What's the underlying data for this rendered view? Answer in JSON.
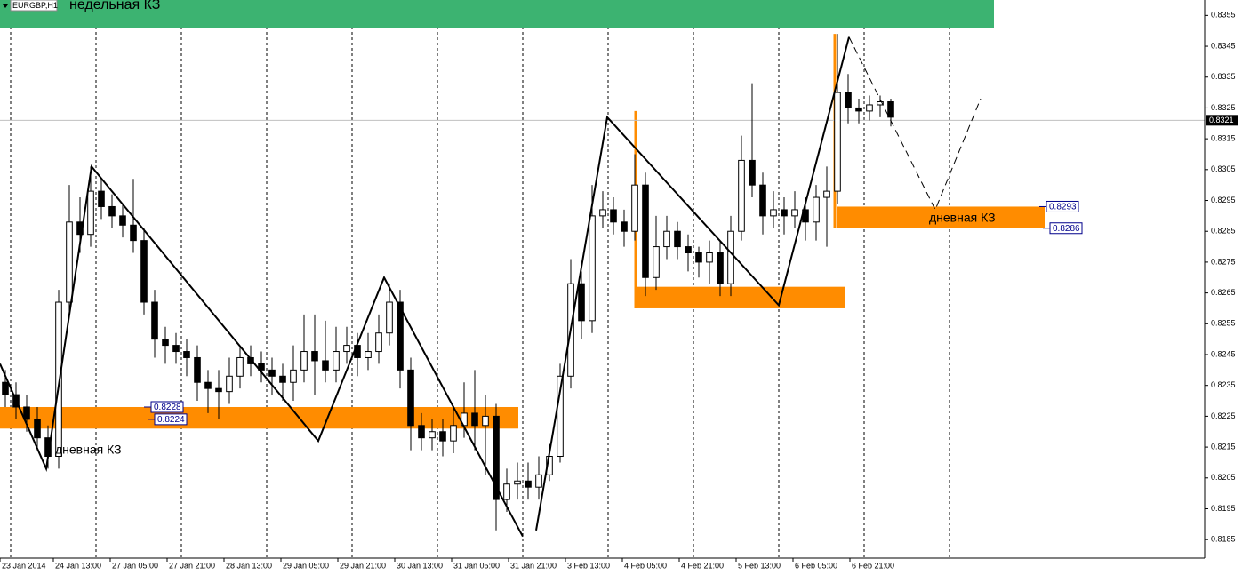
{
  "chart_data": {
    "type": "candlestick",
    "title": "EURGBP,H1",
    "xlim": [
      0,
      338.75
    ],
    "ylim": [
      0.8179,
      0.836
    ],
    "xticks": [
      {
        "value": 0,
        "label": "23 Jan 2014"
      },
      {
        "value": 15,
        "label": "24 Jan 13:00"
      },
      {
        "value": 31,
        "label": "27 Jan 05:00"
      },
      {
        "value": 47,
        "label": "27 Jan 21:00"
      },
      {
        "value": 63,
        "label": "28 Jan 13:00"
      },
      {
        "value": 79,
        "label": "29 Jan 05:00"
      },
      {
        "value": 95,
        "label": "29 Jan 21:00"
      },
      {
        "value": 111,
        "label": "30 Jan 13:00"
      },
      {
        "value": 127,
        "label": "31 Jan 05:00"
      },
      {
        "value": 143,
        "label": "31 Jan 21:00"
      },
      {
        "value": 159,
        "label": "3 Feb 13:00"
      },
      {
        "value": 175,
        "label": "4 Feb 05:00"
      },
      {
        "value": 191,
        "label": "4 Feb 21:00"
      },
      {
        "value": 207,
        "label": "5 Feb 13:00"
      },
      {
        "value": 223,
        "label": "6 Feb 05:00"
      },
      {
        "value": 239,
        "label": "6 Feb 21:00"
      }
    ],
    "yticks": [
      0.8185,
      0.8195,
      0.8205,
      0.8215,
      0.8225,
      0.8235,
      0.8245,
      0.8255,
      0.8265,
      0.8275,
      0.8285,
      0.8295,
      0.8305,
      0.8315,
      0.8325,
      0.8335,
      0.8345,
      0.8355
    ],
    "separators": [
      3,
      27,
      51,
      75,
      99,
      123,
      147,
      171,
      195,
      219,
      243,
      267
    ],
    "last_price": 0.8321,
    "x": [
      1.5,
      4.5,
      7.5,
      10.5,
      13.5,
      16.5,
      19.5,
      22.5,
      25.5,
      28.5,
      31.5,
      34.5,
      37.5,
      40.5,
      43.5,
      46.5,
      49.5,
      52.5,
      55.5,
      58.5,
      61.5,
      64.5,
      67.5,
      70.5,
      73.5,
      76.5,
      79.5,
      82.5,
      85.5,
      88.5,
      91.5,
      94.5,
      97.5,
      100.5,
      103.5,
      106.5,
      109.5,
      112.5,
      115.5,
      118.5,
      121.5,
      124.5,
      127.5,
      130.5,
      133.5,
      136.5,
      139.5,
      142.5,
      145.5,
      148.5,
      151.5,
      154.5,
      157.5,
      160.5,
      163.5,
      166.5,
      169.5,
      172.5,
      175.5,
      178.5,
      181.5,
      184.5,
      187.5,
      190.5,
      193.5,
      196.5,
      199.5,
      202.5,
      205.5,
      208.5,
      211.5,
      214.5,
      217.5,
      220.5,
      223.5,
      226.5,
      229.5,
      232.5,
      235.5,
      238.5,
      241.5,
      244.5,
      247.5,
      250.5
    ],
    "open": [
      0.8236,
      0.8232,
      0.8228,
      0.8224,
      0.8218,
      0.8212,
      0.8262,
      0.8288,
      0.8284,
      0.8298,
      0.8293,
      0.829,
      0.8287,
      0.8282,
      0.8262,
      0.825,
      0.8248,
      0.8246,
      0.8244,
      0.8236,
      0.8234,
      0.8233,
      0.8238,
      0.8244,
      0.8242,
      0.824,
      0.8238,
      0.8236,
      0.824,
      0.8246,
      0.8243,
      0.824,
      0.8246,
      0.8248,
      0.8244,
      0.8246,
      0.8252,
      0.8262,
      0.824,
      0.8222,
      0.8218,
      0.822,
      0.8217,
      0.8222,
      0.8226,
      0.8222,
      0.8225,
      0.8198,
      0.8203,
      0.8204,
      0.8202,
      0.8206,
      0.8212,
      0.8238,
      0.8268,
      0.8256,
      0.829,
      0.8292,
      0.8288,
      0.8285,
      0.83,
      0.827,
      0.828,
      0.8285,
      0.828,
      0.8278,
      0.8275,
      0.8278,
      0.8268,
      0.8285,
      0.8308,
      0.83,
      0.829,
      0.8292,
      0.829,
      0.8292,
      0.8288,
      0.8296,
      0.8298,
      0.833,
      0.8325,
      0.8324,
      0.8326,
      0.8327
    ],
    "high": [
      0.824,
      0.8236,
      0.8232,
      0.8228,
      0.8222,
      0.8266,
      0.83,
      0.8296,
      0.8306,
      0.8302,
      0.8297,
      0.8294,
      0.8302,
      0.8286,
      0.8266,
      0.8254,
      0.8252,
      0.825,
      0.8248,
      0.824,
      0.824,
      0.8244,
      0.8248,
      0.8248,
      0.8246,
      0.8244,
      0.8242,
      0.8248,
      0.8258,
      0.8258,
      0.8256,
      0.8254,
      0.8254,
      0.8252,
      0.8252,
      0.8258,
      0.8268,
      0.8266,
      0.8244,
      0.8226,
      0.8224,
      0.8224,
      0.8228,
      0.8236,
      0.824,
      0.8232,
      0.8229,
      0.8208,
      0.821,
      0.821,
      0.8212,
      0.8216,
      0.8242,
      0.8276,
      0.8272,
      0.83,
      0.8298,
      0.8296,
      0.8292,
      0.831,
      0.8304,
      0.829,
      0.829,
      0.8288,
      0.8284,
      0.828,
      0.8282,
      0.8282,
      0.829,
      0.8316,
      0.8333,
      0.8304,
      0.8298,
      0.8296,
      0.8298,
      0.8296,
      0.83,
      0.8306,
      0.8349,
      0.8336,
      0.8328,
      0.8329,
      0.8329,
      0.8328
    ],
    "low": [
      0.8228,
      0.8224,
      0.822,
      0.8214,
      0.8208,
      0.8208,
      0.8258,
      0.8278,
      0.828,
      0.8289,
      0.8286,
      0.8283,
      0.8278,
      0.8258,
      0.8244,
      0.8242,
      0.8242,
      0.8238,
      0.823,
      0.8226,
      0.8224,
      0.8229,
      0.8234,
      0.8238,
      0.8236,
      0.8232,
      0.823,
      0.823,
      0.8236,
      0.8232,
      0.8236,
      0.8236,
      0.8242,
      0.8238,
      0.824,
      0.8242,
      0.8248,
      0.8234,
      0.8214,
      0.8214,
      0.8214,
      0.8212,
      0.8213,
      0.8218,
      0.8214,
      0.8206,
      0.8188,
      0.8194,
      0.8198,
      0.8198,
      0.8198,
      0.8204,
      0.821,
      0.8234,
      0.825,
      0.8252,
      0.8286,
      0.8284,
      0.828,
      0.8282,
      0.8264,
      0.8266,
      0.8276,
      0.8276,
      0.8272,
      0.827,
      0.8268,
      0.8264,
      0.8264,
      0.8282,
      0.8296,
      0.8284,
      0.8286,
      0.8284,
      0.8286,
      0.8282,
      0.8282,
      0.828,
      0.8294,
      0.832,
      0.832,
      0.8321,
      0.8322,
      0.8319
    ],
    "close": [
      0.8232,
      0.8228,
      0.8224,
      0.8218,
      0.8212,
      0.8262,
      0.8288,
      0.8284,
      0.8298,
      0.8293,
      0.829,
      0.8287,
      0.8282,
      0.8262,
      0.825,
      0.8248,
      0.8246,
      0.8244,
      0.8236,
      0.8234,
      0.8233,
      0.8238,
      0.8244,
      0.8242,
      0.824,
      0.8238,
      0.8236,
      0.824,
      0.8246,
      0.8243,
      0.824,
      0.8246,
      0.8248,
      0.8244,
      0.8246,
      0.8252,
      0.8262,
      0.824,
      0.8222,
      0.8218,
      0.822,
      0.8217,
      0.8222,
      0.8226,
      0.8222,
      0.8225,
      0.8198,
      0.8203,
      0.8204,
      0.8202,
      0.8206,
      0.8212,
      0.8238,
      0.8268,
      0.8256,
      0.829,
      0.8292,
      0.8288,
      0.8285,
      0.83,
      0.827,
      0.828,
      0.8285,
      0.828,
      0.8278,
      0.8275,
      0.8278,
      0.8268,
      0.8285,
      0.8308,
      0.83,
      0.829,
      0.8292,
      0.829,
      0.8292,
      0.8288,
      0.8296,
      0.8298,
      0.833,
      0.8325,
      0.8324,
      0.8326,
      0.8327,
      0.8322
    ],
    "zones": [
      {
        "color": "#3cb371",
        "x": [
          0,
          279.5
        ],
        "top": 0.836,
        "bottom": 0.8351,
        "labels": []
      },
      {
        "color": "#ff8c00",
        "x": [
          0,
          145.75
        ],
        "top": 0.8228,
        "bottom": 0.8221,
        "labels": [
          0.8228,
          0.8224
        ]
      },
      {
        "color": "#ff8c00",
        "x": [
          179,
          237.75
        ],
        "top": 0.8267,
        "bottom": 0.826,
        "labels": []
      },
      {
        "color": "#ff8c00",
        "x": [
          235.25,
          293.75
        ],
        "top": 0.8293,
        "bottom": 0.8286,
        "labels": [
          0.8293,
          0.8286
        ]
      }
    ],
    "spikes": [
      {
        "color": "#ff8c00",
        "x": 178.75,
        "values": [
          0.8324,
          0.826
        ]
      },
      {
        "color": "#ff8c00",
        "x": 234.75,
        "values": [
          0.8349,
          0.8286
        ]
      }
    ],
    "lines": [
      {
        "style": "solid",
        "x": [
          0,
          13,
          25.75,
          89.5,
          108,
          147
        ],
        "values": [
          0.8242,
          0.8208,
          0.8306,
          0.8217,
          0.827,
          0.8186
        ]
      },
      {
        "style": "solid",
        "x": [
          150.75,
          170.75,
          219,
          238.75
        ],
        "values": [
          0.8188,
          0.8322,
          0.8261,
          0.8348
        ]
      },
      {
        "style": "dashed",
        "x": [
          238.75,
          263,
          275.75
        ],
        "values": [
          0.8348,
          0.8292,
          0.8328
        ]
      }
    ],
    "annotations": [
      "недельная КЗ",
      "дневная КЗ",
      "дневная КЗ"
    ]
  }
}
